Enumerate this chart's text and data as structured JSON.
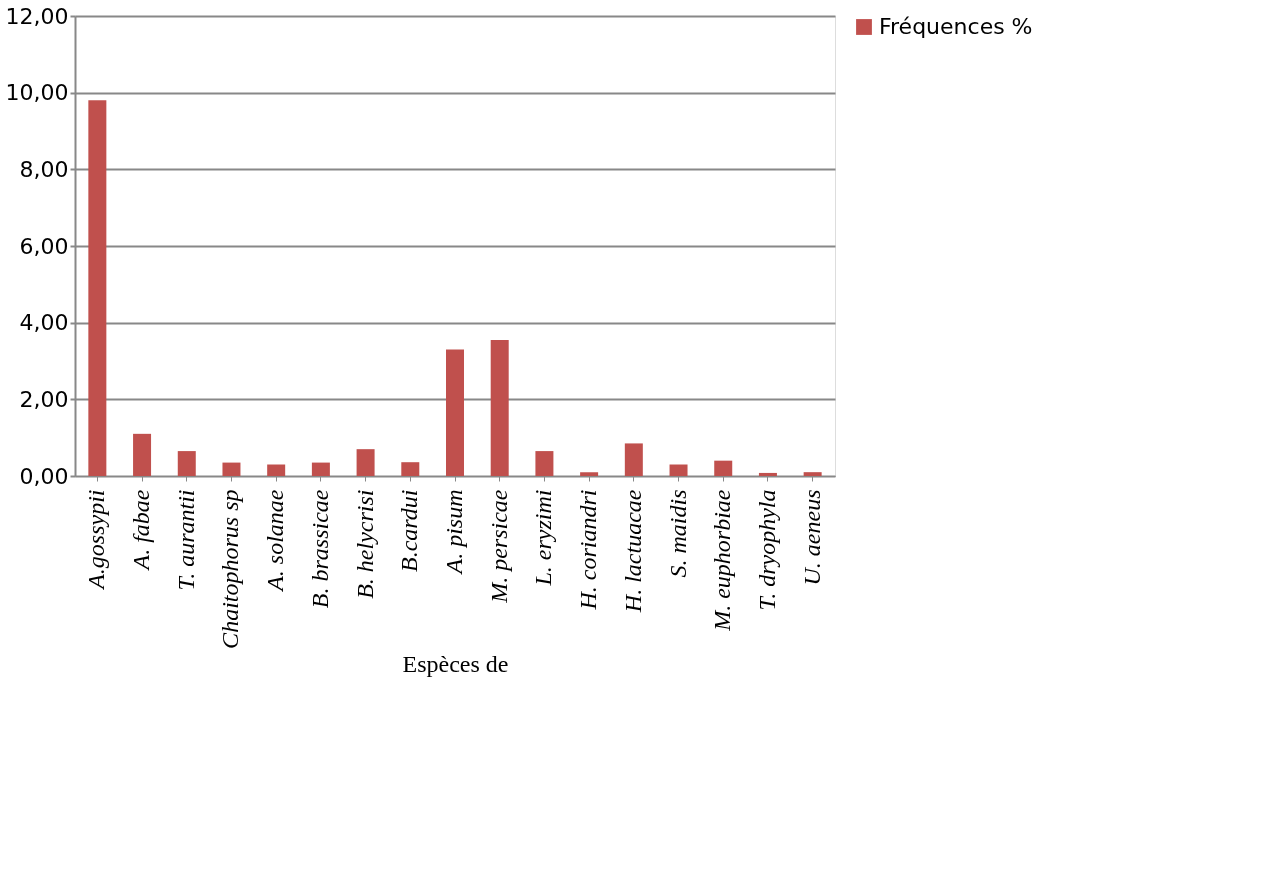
{
  "chart_data": {
    "type": "bar",
    "categories": [
      "A.gossypii",
      "A. fabae",
      "T. aurantii",
      "Chaitophorus sp",
      "A. solanae",
      "B. brassicae",
      "B. helycrisi",
      "B.cardui",
      "A. pisum",
      "M. persicae",
      "L. eryzimi",
      "H. coriandri",
      "H. lactuacae",
      "S. maidis",
      "M. euphorbiae",
      "T. dryophyla",
      "U. aeneus"
    ],
    "series": [
      {
        "name": "Fréquences %",
        "color": "#c0504d",
        "values": [
          9.8,
          1.1,
          0.65,
          0.35,
          0.3,
          0.35,
          0.7,
          0.36,
          3.3,
          3.55,
          0.65,
          0.1,
          0.85,
          0.3,
          0.4,
          0.08,
          0.1
        ]
      }
    ],
    "xlabel": "Espèces de",
    "ylim": [
      0,
      12
    ],
    "yticks": [
      {
        "value": 0,
        "label": "0,00"
      },
      {
        "value": 2,
        "label": "2,00"
      },
      {
        "value": 4,
        "label": "4,00"
      },
      {
        "value": 6,
        "label": "6,00"
      },
      {
        "value": 8,
        "label": "8,00"
      },
      {
        "value": 10,
        "label": "10,00"
      },
      {
        "value": 12,
        "label": "12,00"
      }
    ],
    "grid": "y",
    "legend": "right"
  }
}
